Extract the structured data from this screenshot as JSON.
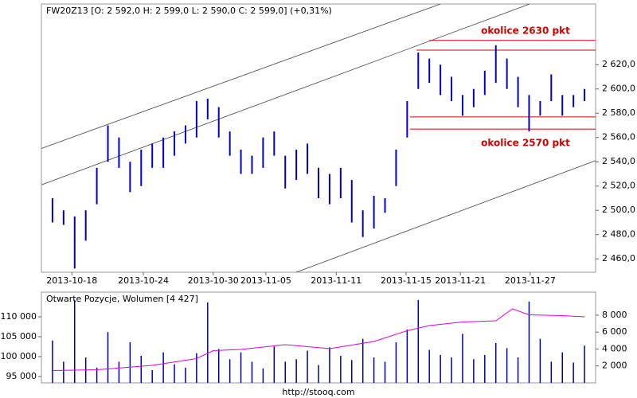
{
  "chart_data": [
    {
      "type": "hilo",
      "title": "FW20Z13 [O: 2 592,0  H: 2 599,0  L: 2 590,0  C: 2 599,0] (+0,31%)",
      "color": "#0000cc",
      "x": [
        2,
        4,
        6,
        8,
        10,
        12,
        14,
        16,
        18,
        20,
        22,
        24,
        26,
        28,
        30,
        32,
        34,
        36,
        38,
        40,
        42,
        44,
        46,
        48,
        50,
        52,
        54,
        56,
        58,
        60,
        62,
        64,
        66,
        68,
        70,
        72,
        74,
        76,
        78,
        80,
        82,
        84,
        86,
        88,
        90,
        92,
        94,
        96,
        98
      ],
      "low": [
        2490,
        2488,
        2452,
        2475,
        2505,
        2540,
        2535,
        2515,
        2520,
        2535,
        2535,
        2545,
        2555,
        2560,
        2575,
        2560,
        2545,
        2530,
        2530,
        2535,
        2545,
        2518,
        2525,
        2530,
        2510,
        2505,
        2510,
        2490,
        2478,
        2485,
        2498,
        2520,
        2560,
        2600,
        2605,
        2595,
        2590,
        2578,
        2585,
        2595,
        2605,
        2600,
        2585,
        2565,
        2578,
        2590,
        2578,
        2585,
        2590
      ],
      "high": [
        2510,
        2500,
        2495,
        2500,
        2535,
        2570,
        2560,
        2540,
        2550,
        2555,
        2560,
        2565,
        2570,
        2590,
        2592,
        2585,
        2565,
        2550,
        2545,
        2560,
        2565,
        2545,
        2550,
        2555,
        2535,
        2530,
        2535,
        2525,
        2500,
        2512,
        2510,
        2550,
        2590,
        2630,
        2625,
        2620,
        2610,
        2595,
        2600,
        2615,
        2636,
        2625,
        2610,
        2595,
        2590,
        2612,
        2595,
        2595,
        2600
      ],
      "xlim": [
        0,
        100
      ],
      "xticks": [
        {
          "value": 5.5,
          "label": "2013-10-18"
        },
        {
          "value": 18.4,
          "label": "2013-10-24"
        },
        {
          "value": 31.0,
          "label": "2013-10-30"
        },
        {
          "value": 40.5,
          "label": "2013-11-05"
        },
        {
          "value": 53.2,
          "label": "2013-11-11"
        },
        {
          "value": 65.8,
          "label": "2013-11-15"
        },
        {
          "value": 75.6,
          "label": "2013-11-21"
        },
        {
          "value": 88.2,
          "label": "2013-11-27"
        }
      ],
      "ylim": [
        2449,
        2670
      ],
      "yticks": [
        {
          "value": 2460,
          "label": "2 460,0"
        },
        {
          "value": 2480,
          "label": "2 480,0"
        },
        {
          "value": 2500,
          "label": "2 500,0"
        },
        {
          "value": 2520,
          "label": "2 520,0"
        },
        {
          "value": 2540,
          "label": "2 540,0"
        },
        {
          "value": 2560,
          "label": "2 560,0"
        },
        {
          "value": 2580,
          "label": "2 580,0"
        },
        {
          "value": 2600,
          "label": "2 600,0"
        },
        {
          "value": 2620,
          "label": "2 620,0"
        }
      ],
      "trend_lines": [
        {
          "x": [
            0,
            72
          ],
          "y": [
            2551,
            2670
          ]
        },
        {
          "x": [
            0,
            88.1
          ],
          "y": [
            2521,
            2670
          ]
        },
        {
          "x": [
            46,
            100
          ],
          "y": [
            2449,
            2541
          ]
        }
      ],
      "trend_color": "#444444",
      "levels": [
        {
          "x": [
            70,
            100
          ],
          "y": 2640
        },
        {
          "x": [
            67.7,
            100
          ],
          "y": 2632
        },
        {
          "x": [
            66.5,
            100
          ],
          "y": 2577
        },
        {
          "x": [
            66.5,
            100
          ],
          "y": 2567
        }
      ],
      "level_color": "#dd0000",
      "annotations": [
        "okolice 2630 pkt",
        "okolice 2570 pkt"
      ]
    },
    {
      "type": "volume-oi",
      "title": "Otwarte Pozycje, Wolumen [4 427]",
      "xlim": [
        0,
        100
      ],
      "volume": {
        "color": "#0000aa",
        "axis": "y2",
        "x": [
          2,
          4,
          6,
          8,
          10,
          12,
          14,
          16,
          18,
          20,
          22,
          24,
          26,
          28,
          30,
          32,
          34,
          36,
          38,
          40,
          42,
          44,
          46,
          48,
          50,
          52,
          54,
          56,
          58,
          60,
          62,
          64,
          66,
          68,
          70,
          72,
          74,
          76,
          78,
          80,
          82,
          84,
          86,
          88,
          90,
          92,
          94,
          96,
          98
        ],
        "values": [
          5000,
          2500,
          9800,
          3000,
          1800,
          6000,
          2500,
          4800,
          3200,
          1500,
          3600,
          2200,
          1800,
          3500,
          9500,
          4000,
          2800,
          3600,
          2500,
          1700,
          4300,
          2500,
          2800,
          3800,
          2100,
          4200,
          3200,
          2700,
          5200,
          3000,
          2500,
          4800,
          6300,
          9800,
          3900,
          3300,
          3000,
          5800,
          2800,
          3300,
          4700,
          4100,
          3000,
          9600,
          5200,
          2500,
          3600,
          2400,
          4400
        ]
      },
      "open_interest": {
        "color": "#dd00dd",
        "x": [
          2,
          10,
          20,
          28,
          31,
          36,
          44,
          52,
          60,
          66,
          70,
          76,
          82,
          85,
          88,
          94,
          98
        ],
        "values": [
          96500,
          96700,
          97800,
          99500,
          101500,
          101800,
          103000,
          102000,
          103800,
          106500,
          107800,
          108700,
          109000,
          112000,
          110500,
          110300,
          110000
        ]
      },
      "ylim": [
        93400,
        116200
      ],
      "yticks": [
        {
          "value": 95000,
          "label": "95 000"
        },
        {
          "value": 100000,
          "label": "100 000"
        },
        {
          "value": 105000,
          "label": "105 000"
        },
        {
          "value": 110000,
          "label": "110 000"
        }
      ],
      "y2lim": [
        0,
        10720
      ],
      "y2ticks": [
        {
          "value": 2000,
          "label": "2 000"
        },
        {
          "value": 4000,
          "label": "4 000"
        },
        {
          "value": 6000,
          "label": "6 000"
        },
        {
          "value": 8000,
          "label": "8 000"
        }
      ],
      "source": "http://stooq.com"
    }
  ]
}
